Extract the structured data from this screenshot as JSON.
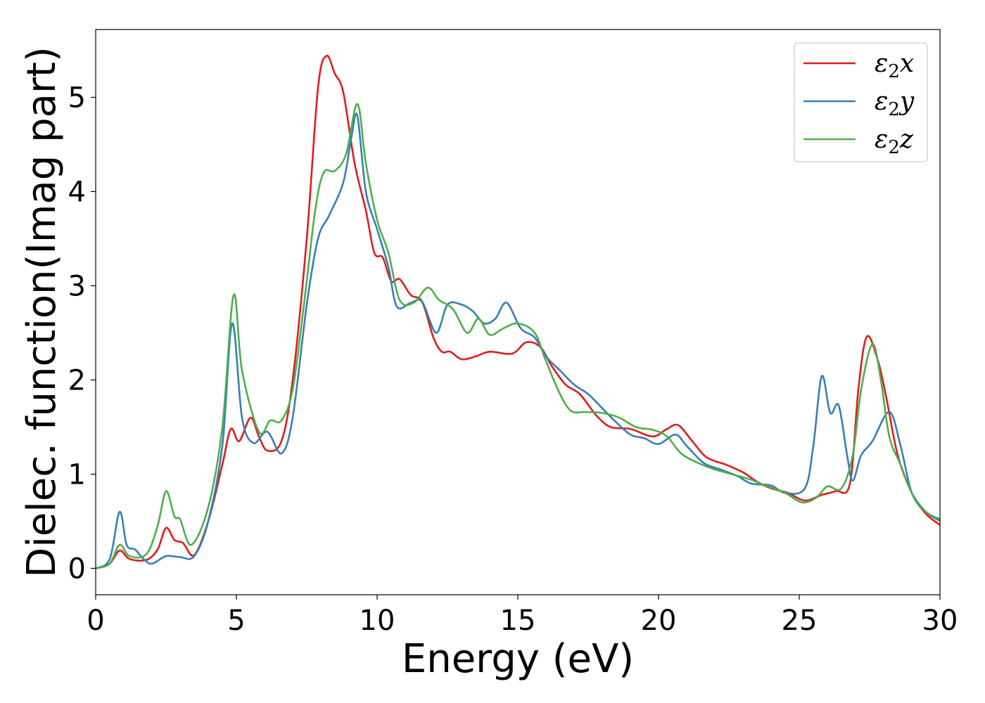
{
  "chart_data": {
    "type": "line",
    "title": "",
    "xlabel": "Energy (eV)",
    "ylabel": "Dielec. function(Imag part)",
    "xlim": [
      0,
      30
    ],
    "ylim": [
      -0.28,
      5.72
    ],
    "xticks": [
      0,
      5,
      10,
      15,
      20,
      25,
      30
    ],
    "yticks": [
      0,
      1,
      2,
      3,
      4,
      5
    ],
    "xtick_labels": [
      "0",
      "5",
      "10",
      "15",
      "20",
      "25",
      "30"
    ],
    "ytick_labels": [
      "0",
      "1",
      "2",
      "3",
      "4",
      "5"
    ],
    "grid": false,
    "legend_position": "top-right",
    "series": [
      {
        "name": "ε2x",
        "legend_base": "ε",
        "legend_sub": "2",
        "legend_tail": "x",
        "color": "#e41a1c",
        "points": [
          [
            0,
            0
          ],
          [
            0.5,
            0.05
          ],
          [
            0.85,
            0.19
          ],
          [
            1.2,
            0.1
          ],
          [
            1.8,
            0.09
          ],
          [
            2.2,
            0.2
          ],
          [
            2.5,
            0.43
          ],
          [
            2.8,
            0.3
          ],
          [
            3.1,
            0.27
          ],
          [
            3.5,
            0.14
          ],
          [
            4.0,
            0.5
          ],
          [
            4.5,
            1.1
          ],
          [
            4.8,
            1.48
          ],
          [
            5.1,
            1.35
          ],
          [
            5.5,
            1.6
          ],
          [
            5.8,
            1.4
          ],
          [
            6.1,
            1.25
          ],
          [
            6.6,
            1.35
          ],
          [
            7.0,
            2.0
          ],
          [
            7.5,
            3.5
          ],
          [
            7.9,
            5.1
          ],
          [
            8.2,
            5.44
          ],
          [
            8.5,
            5.25
          ],
          [
            8.8,
            5.05
          ],
          [
            9.2,
            4.3
          ],
          [
            9.6,
            3.8
          ],
          [
            9.9,
            3.35
          ],
          [
            10.2,
            3.3
          ],
          [
            10.5,
            3.05
          ],
          [
            10.8,
            3.07
          ],
          [
            11.2,
            2.9
          ],
          [
            11.6,
            2.83
          ],
          [
            12.0,
            2.45
          ],
          [
            12.3,
            2.3
          ],
          [
            12.6,
            2.3
          ],
          [
            13.0,
            2.22
          ],
          [
            13.5,
            2.25
          ],
          [
            14.0,
            2.3
          ],
          [
            14.8,
            2.28
          ],
          [
            15.3,
            2.4
          ],
          [
            15.8,
            2.35
          ],
          [
            16.2,
            2.15
          ],
          [
            16.7,
            1.95
          ],
          [
            17.2,
            1.85
          ],
          [
            17.8,
            1.62
          ],
          [
            18.3,
            1.5
          ],
          [
            19.0,
            1.48
          ],
          [
            19.8,
            1.4
          ],
          [
            20.3,
            1.48
          ],
          [
            20.7,
            1.52
          ],
          [
            21.2,
            1.35
          ],
          [
            21.7,
            1.18
          ],
          [
            22.4,
            1.1
          ],
          [
            23.0,
            1.02
          ],
          [
            23.5,
            0.92
          ],
          [
            24.0,
            0.85
          ],
          [
            24.6,
            0.8
          ],
          [
            25.2,
            0.72
          ],
          [
            25.8,
            0.78
          ],
          [
            26.3,
            0.82
          ],
          [
            26.8,
            0.9
          ],
          [
            27.1,
            1.9
          ],
          [
            27.4,
            2.46
          ],
          [
            27.8,
            2.2
          ],
          [
            28.1,
            1.8
          ],
          [
            28.5,
            1.2
          ],
          [
            29.0,
            0.8
          ],
          [
            29.5,
            0.58
          ],
          [
            30.0,
            0.46
          ]
        ]
      },
      {
        "name": "ε2y",
        "legend_base": "ε",
        "legend_sub": "2",
        "legend_tail": "y",
        "color": "#377eb8",
        "points": [
          [
            0,
            0
          ],
          [
            0.5,
            0.1
          ],
          [
            0.85,
            0.6
          ],
          [
            1.1,
            0.25
          ],
          [
            1.4,
            0.2
          ],
          [
            1.7,
            0.1
          ],
          [
            2.0,
            0.05
          ],
          [
            2.5,
            0.13
          ],
          [
            3.0,
            0.12
          ],
          [
            3.5,
            0.13
          ],
          [
            4.0,
            0.5
          ],
          [
            4.5,
            1.3
          ],
          [
            4.85,
            2.6
          ],
          [
            5.2,
            1.6
          ],
          [
            5.6,
            1.33
          ],
          [
            6.1,
            1.45
          ],
          [
            6.6,
            1.22
          ],
          [
            7.0,
            1.6
          ],
          [
            7.5,
            2.8
          ],
          [
            7.9,
            3.5
          ],
          [
            8.3,
            3.75
          ],
          [
            8.8,
            4.1
          ],
          [
            9.1,
            4.6
          ],
          [
            9.3,
            4.8
          ],
          [
            9.6,
            4.0
          ],
          [
            10.0,
            3.6
          ],
          [
            10.4,
            3.2
          ],
          [
            10.7,
            2.78
          ],
          [
            11.2,
            2.82
          ],
          [
            11.6,
            2.83
          ],
          [
            12.1,
            2.5
          ],
          [
            12.5,
            2.8
          ],
          [
            13.0,
            2.8
          ],
          [
            13.4,
            2.73
          ],
          [
            13.8,
            2.6
          ],
          [
            14.2,
            2.65
          ],
          [
            14.6,
            2.82
          ],
          [
            15.1,
            2.55
          ],
          [
            15.6,
            2.45
          ],
          [
            16.0,
            2.25
          ],
          [
            16.5,
            2.1
          ],
          [
            17.0,
            1.95
          ],
          [
            17.5,
            1.85
          ],
          [
            18.0,
            1.7
          ],
          [
            18.5,
            1.55
          ],
          [
            19.0,
            1.42
          ],
          [
            19.5,
            1.38
          ],
          [
            20.0,
            1.32
          ],
          [
            20.6,
            1.42
          ],
          [
            21.0,
            1.3
          ],
          [
            21.6,
            1.12
          ],
          [
            22.2,
            1.05
          ],
          [
            22.8,
            0.98
          ],
          [
            23.3,
            0.9
          ],
          [
            24.0,
            0.88
          ],
          [
            24.5,
            0.8
          ],
          [
            25.2,
            0.85
          ],
          [
            25.5,
            1.3
          ],
          [
            25.8,
            2.04
          ],
          [
            26.1,
            1.65
          ],
          [
            26.4,
            1.73
          ],
          [
            26.7,
            1.2
          ],
          [
            26.9,
            0.93
          ],
          [
            27.2,
            1.2
          ],
          [
            27.6,
            1.35
          ],
          [
            28.2,
            1.66
          ],
          [
            28.6,
            1.3
          ],
          [
            29.0,
            0.8
          ],
          [
            29.5,
            0.6
          ],
          [
            30.0,
            0.52
          ]
        ]
      },
      {
        "name": "ε2z",
        "legend_base": "ε",
        "legend_sub": "2",
        "legend_tail": "z",
        "color": "#4daf4a",
        "points": [
          [
            0,
            0
          ],
          [
            0.5,
            0.05
          ],
          [
            0.85,
            0.25
          ],
          [
            1.2,
            0.13
          ],
          [
            1.8,
            0.15
          ],
          [
            2.2,
            0.45
          ],
          [
            2.5,
            0.82
          ],
          [
            2.8,
            0.55
          ],
          [
            3.0,
            0.52
          ],
          [
            3.4,
            0.25
          ],
          [
            4.0,
            0.65
          ],
          [
            4.5,
            1.5
          ],
          [
            4.9,
            2.9
          ],
          [
            5.2,
            2.1
          ],
          [
            5.8,
            1.45
          ],
          [
            6.2,
            1.57
          ],
          [
            6.6,
            1.57
          ],
          [
            7.0,
            1.9
          ],
          [
            7.4,
            2.8
          ],
          [
            7.8,
            3.8
          ],
          [
            8.1,
            4.2
          ],
          [
            8.5,
            4.22
          ],
          [
            8.9,
            4.4
          ],
          [
            9.3,
            4.93
          ],
          [
            9.6,
            4.3
          ],
          [
            10.0,
            3.7
          ],
          [
            10.4,
            3.35
          ],
          [
            10.8,
            2.85
          ],
          [
            11.3,
            2.82
          ],
          [
            11.8,
            2.98
          ],
          [
            12.2,
            2.85
          ],
          [
            12.7,
            2.75
          ],
          [
            13.2,
            2.5
          ],
          [
            13.6,
            2.65
          ],
          [
            14.0,
            2.48
          ],
          [
            14.5,
            2.55
          ],
          [
            15.0,
            2.6
          ],
          [
            15.6,
            2.5
          ],
          [
            16.0,
            2.2
          ],
          [
            16.5,
            1.85
          ],
          [
            16.9,
            1.67
          ],
          [
            17.4,
            1.66
          ],
          [
            18.0,
            1.65
          ],
          [
            18.6,
            1.6
          ],
          [
            19.2,
            1.5
          ],
          [
            19.8,
            1.47
          ],
          [
            20.3,
            1.4
          ],
          [
            20.8,
            1.22
          ],
          [
            21.4,
            1.12
          ],
          [
            22.0,
            1.05
          ],
          [
            22.6,
            1.0
          ],
          [
            23.2,
            0.95
          ],
          [
            23.8,
            0.88
          ],
          [
            24.5,
            0.8
          ],
          [
            25.1,
            0.7
          ],
          [
            25.6,
            0.75
          ],
          [
            26.0,
            0.87
          ],
          [
            26.5,
            0.85
          ],
          [
            26.9,
            1.2
          ],
          [
            27.2,
            1.9
          ],
          [
            27.6,
            2.38
          ],
          [
            27.9,
            2.0
          ],
          [
            28.2,
            1.4
          ],
          [
            28.6,
            1.1
          ],
          [
            29.0,
            0.8
          ],
          [
            29.5,
            0.6
          ],
          [
            30.0,
            0.5
          ]
        ]
      }
    ]
  }
}
